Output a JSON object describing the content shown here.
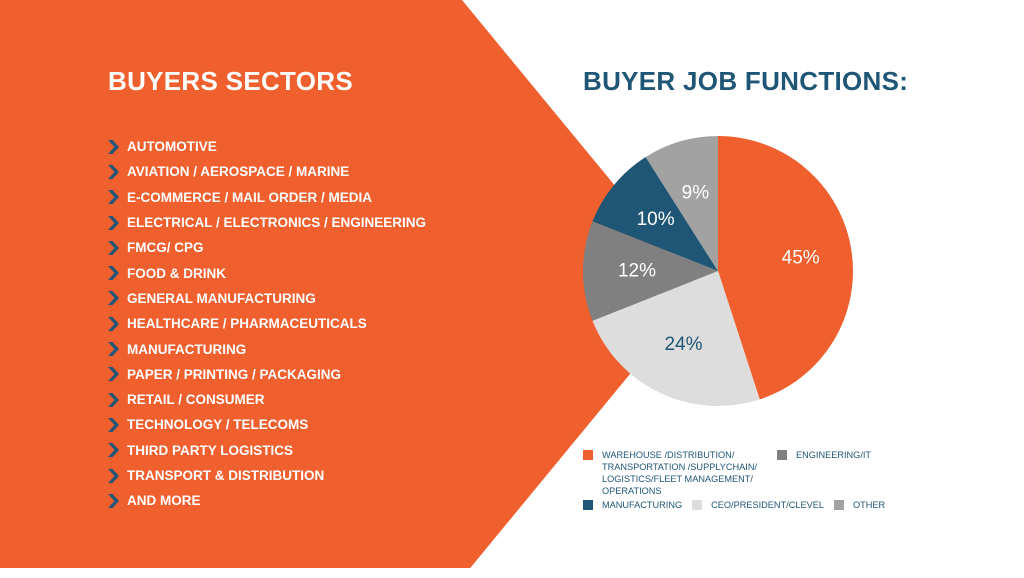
{
  "colors": {
    "orange": "#f05f2e",
    "navy": "#1f5676",
    "dark_gray": "#808080",
    "light_gray": "#dddddd",
    "mid_gray": "#a2a2a2",
    "chevron": "#1f5676"
  },
  "left_panel": {
    "title": "BUYERS SECTORS",
    "bullet_icon": "chevron-right-icon",
    "sectors": [
      "AUTOMOTIVE",
      "AVIATION / AEROSPACE / MARINE",
      "E-COMMERCE / MAIL ORDER / MEDIA",
      "ELECTRICAL / ELECTRONICS / ENGINEERING",
      "FMCG/ CPG",
      "FOOD & DRINK",
      "GENERAL MANUFACTURING",
      "HEALTHCARE / PHARMACEUTICALS",
      "MANUFACTURING",
      "PAPER / PRINTING / PACKAGING",
      "RETAIL / CONSUMER",
      "TECHNOLOGY / TELECOMS",
      "THIRD PARTY LOGISTICS",
      "TRANSPORT & DISTRIBUTION",
      "AND MORE"
    ]
  },
  "right_panel": {
    "title": "BUYER JOB FUNCTIONS:"
  },
  "chart_data": {
    "type": "pie",
    "title": "BUYER JOB FUNCTIONS:",
    "slices": [
      {
        "label": "WAREHOUSE /DISTRIBUTION/ TRANSPORTATION /SUPPLYCHAIN/ LOGISTICS/FLEET MANAGEMENT/ OPERATIONS",
        "value": 45,
        "value_label": "45%",
        "color": "#f05f2e",
        "label_color": "#ffffff"
      },
      {
        "label": "CEO/PRESIDENT/CLEVEL",
        "value": 24,
        "value_label": "24%",
        "color": "#dddddd",
        "label_color": "#1f5676"
      },
      {
        "label": "ENGINEERING/IT",
        "value": 12,
        "value_label": "12%",
        "color": "#808080",
        "label_color": "#ffffff"
      },
      {
        "label": "MANUFACTURING",
        "value": 10,
        "value_label": "10%",
        "color": "#1f5676",
        "label_color": "#ffffff"
      },
      {
        "label": "OTHER",
        "value": 9,
        "value_label": "9%",
        "color": "#a2a2a2",
        "label_color": "#ffffff"
      }
    ],
    "start": "12 o'clock",
    "direction": "clockwise",
    "legend_position": "bottom",
    "legend_rows": [
      [
        0,
        2
      ],
      [
        3,
        1,
        4
      ]
    ]
  }
}
